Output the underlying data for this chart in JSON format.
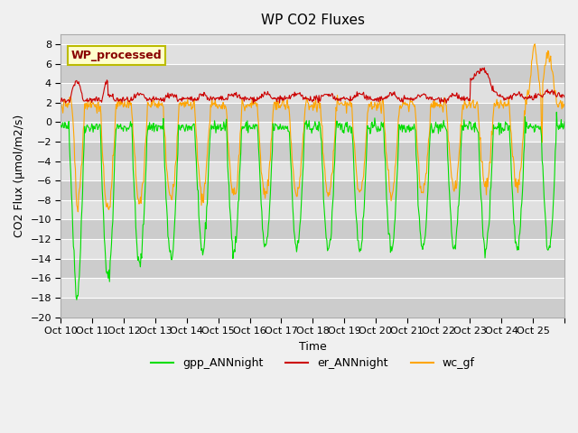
{
  "title": "WP CO2 Fluxes",
  "xlabel": "Time",
  "ylabel": "CO2 Flux (μmol/m2/s)",
  "ylim": [
    -20,
    9
  ],
  "yticks": [
    -20,
    -18,
    -16,
    -14,
    -12,
    -10,
    -8,
    -6,
    -4,
    -2,
    0,
    2,
    4,
    6,
    8
  ],
  "xtick_labels": [
    "Oct 10",
    "Oct 11",
    "Oct 12",
    "Oct 13",
    "Oct 14",
    "Oct 15",
    "Oct 16",
    "Oct 17",
    "Oct 18",
    "Oct 19",
    "Oct 20",
    "Oct 21",
    "Oct 22",
    "Oct 23",
    "Oct 24",
    "Oct 25",
    ""
  ],
  "gpp_color": "#00dd00",
  "er_color": "#cc0000",
  "wc_color": "#ffa500",
  "linewidth": 0.8,
  "plot_bg": "#e0e0e0",
  "fig_bg": "#f0f0f0",
  "annotation_text": "WP_processed",
  "annotation_facecolor": "#ffffcc",
  "annotation_edgecolor": "#bbbb00",
  "annotation_textcolor": "#880000",
  "legend_labels": [
    "gpp_ANNnight",
    "er_ANNnight",
    "wc_gf"
  ],
  "n_days": 16,
  "points_per_day": 48
}
